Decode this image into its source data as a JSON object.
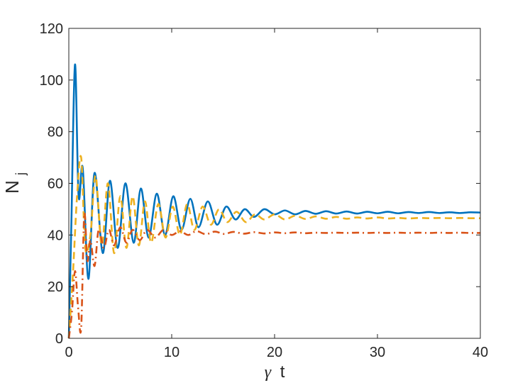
{
  "chart_data": {
    "type": "line",
    "xlabel_symbol": "γ",
    "xlabel_text": "t",
    "ylabel_main": "N",
    "ylabel_sub": "j",
    "xlim": [
      0,
      40
    ],
    "ylim": [
      0,
      120
    ],
    "xticks": [
      "0",
      "10",
      "20",
      "30",
      "40"
    ],
    "yticks": [
      "0",
      "20",
      "40",
      "60",
      "80",
      "100",
      "120"
    ],
    "grid": false,
    "series": [
      {
        "style": "solid",
        "color": "#0072BD",
        "x": [
          0,
          0.25,
          0.6,
          0.95,
          1.35,
          1.9,
          2.5,
          3.3,
          4.0,
          4.75,
          5.5,
          6.3,
          7.0,
          7.75,
          8.55,
          9.35,
          10.15,
          10.95,
          11.8,
          12.6,
          13.5,
          14.4,
          15.3,
          16.2,
          17.1,
          18.0,
          19.0,
          20.0,
          21.0,
          22.0,
          23.0,
          24.0,
          25.0,
          26.0,
          27.0,
          28.0,
          29.0,
          30.0,
          31.0,
          32.0,
          33.0,
          34.0,
          35.0,
          36.0,
          37.0,
          38.0,
          39.0,
          40.0
        ],
        "y": [
          0,
          45,
          106,
          55,
          66,
          23,
          64,
          33,
          61,
          35,
          60,
          37,
          58,
          39,
          56,
          40,
          55,
          42,
          54,
          43,
          53,
          44,
          51,
          46,
          50,
          47,
          50,
          48,
          49.5,
          48,
          49.3,
          48.2,
          49.2,
          48.3,
          49.1,
          48.3,
          49.0,
          48.4,
          49.0,
          48.4,
          48.9,
          48.5,
          48.9,
          48.5,
          48.8,
          48.5,
          48.8,
          48.7
        ]
      },
      {
        "style": "dashed",
        "color": "#EDB120",
        "x": [
          0,
          0.4,
          0.8,
          1.2,
          1.6,
          2.1,
          2.6,
          3.2,
          3.8,
          4.4,
          5.0,
          5.6,
          6.2,
          6.8,
          7.4,
          8.0,
          8.7,
          9.4,
          10.1,
          10.8,
          11.5,
          12.2,
          13.0,
          13.8,
          14.6,
          15.4,
          16.3,
          17.2,
          18.1,
          19.0,
          20.0,
          21.0,
          22.0,
          23.0,
          24.0,
          25.0,
          26.0,
          27.0,
          28.0,
          29.0,
          30.0,
          31.0,
          32.0,
          33.0,
          34.0,
          35.0,
          36.0,
          37.0,
          38.0,
          39.0,
          40.0
        ],
        "y": [
          0,
          25,
          55,
          70,
          35,
          40,
          63,
          36,
          60,
          33,
          55,
          35,
          55,
          36,
          53,
          37,
          52,
          39,
          51,
          40,
          52,
          42,
          51,
          44,
          50,
          45,
          49,
          45,
          48,
          46,
          48,
          46,
          47.5,
          46.2,
          47.2,
          46.3,
          47.0,
          46.3,
          46.8,
          46.4,
          46.8,
          46.4,
          46.6,
          46.4,
          46.6,
          46.5,
          46.6,
          46.5,
          46.6,
          46.5,
          46.5
        ]
      },
      {
        "style": "dashdot",
        "color": "#D95319",
        "x": [
          0,
          0.3,
          0.6,
          0.9,
          1.2,
          1.5,
          1.8,
          2.1,
          2.5,
          2.9,
          3.4,
          3.9,
          4.4,
          5.0,
          5.6,
          6.2,
          6.9,
          7.6,
          8.4,
          9.2,
          10.0,
          10.8,
          11.6,
          12.4,
          13.3,
          14.2,
          15.1,
          16.0,
          17.0,
          18.0,
          19.0,
          20.0,
          21.0,
          22.0,
          23.0,
          24.0,
          25.0,
          26.0,
          27.0,
          28.0,
          29.0,
          30.0,
          31.0,
          32.0,
          33.0,
          34.0,
          35.0,
          36.0,
          37.0,
          38.0,
          39.0,
          40.0
        ],
        "y": [
          0,
          10,
          26,
          12,
          4,
          48,
          30,
          38,
          28,
          42,
          35,
          42,
          36,
          43,
          37,
          42,
          38,
          42,
          39,
          42,
          40,
          41.5,
          40,
          41.5,
          40.3,
          41.3,
          40.4,
          41.2,
          40.5,
          41.1,
          40.6,
          41.0,
          40.7,
          41.0,
          40.7,
          40.9,
          40.8,
          40.9,
          40.8,
          40.9,
          40.8,
          40.9,
          40.8,
          40.9,
          40.8,
          40.9,
          40.8,
          40.9,
          40.8,
          40.9,
          40.8,
          40.8
        ]
      }
    ]
  }
}
